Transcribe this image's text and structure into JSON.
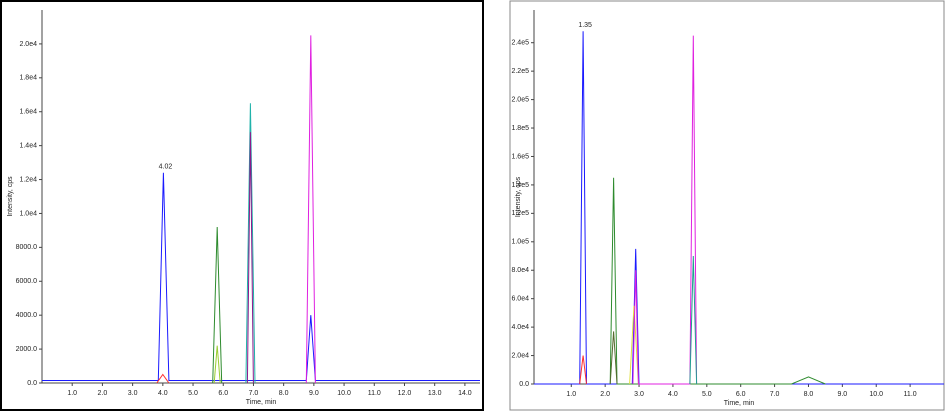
{
  "chart_data": [
    {
      "type": "line",
      "x_label": "Time, min",
      "y_label": "Intensity, cps",
      "xlim": [
        0,
        14.5
      ],
      "ylim": [
        0,
        22000
      ],
      "xticks": [
        {
          "value": 1,
          "label": "1.0"
        },
        {
          "value": 2,
          "label": "2.0"
        },
        {
          "value": 3,
          "label": "3.0"
        },
        {
          "value": 4,
          "label": "4.0"
        },
        {
          "value": 5,
          "label": "5.0"
        },
        {
          "value": 6,
          "label": "6.0"
        },
        {
          "value": 7,
          "label": "7.0"
        },
        {
          "value": 8,
          "label": "8.0"
        },
        {
          "value": 9,
          "label": "9.0"
        },
        {
          "value": 10,
          "label": "10.0"
        },
        {
          "value": 11,
          "label": "11.0"
        },
        {
          "value": 12,
          "label": "12.0"
        },
        {
          "value": 13,
          "label": "13.0"
        },
        {
          "value": 14,
          "label": "14.0"
        }
      ],
      "yticks": [
        {
          "value": 0,
          "label": "0.0"
        },
        {
          "value": 2000,
          "label": "2000.0"
        },
        {
          "value": 4000,
          "label": "4000.0"
        },
        {
          "value": 6000,
          "label": "6000.0"
        },
        {
          "value": 8000,
          "label": "8000.0"
        },
        {
          "value": 10000,
          "label": "1.0e4"
        },
        {
          "value": 12000,
          "label": "1.2e4"
        },
        {
          "value": 14000,
          "label": "1.4e4"
        },
        {
          "value": 16000,
          "label": "1.6e4"
        },
        {
          "value": 18000,
          "label": "1.8e4"
        },
        {
          "value": 20000,
          "label": "2.0e4"
        }
      ],
      "annotations": [
        {
          "text": "4.02",
          "x": 4.02,
          "y": 12400
        }
      ],
      "series": [
        {
          "color": "#1a1aff",
          "x": [
            0,
            3.85,
            4.02,
            4.2,
            8.75,
            8.9,
            9.05,
            14.5
          ],
          "values": [
            150,
            150,
            12400,
            150,
            150,
            4000,
            150,
            150
          ]
        },
        {
          "color": "#ff3030",
          "x": [
            3.8,
            4.0,
            4.2
          ],
          "values": [
            0,
            500,
            0
          ]
        },
        {
          "color": "#2e8b2e",
          "x": [
            5.65,
            5.8,
            5.95
          ],
          "values": [
            0,
            9200,
            0
          ]
        },
        {
          "color": "#9acd32",
          "x": [
            5.7,
            5.8,
            5.9
          ],
          "values": [
            0,
            2200,
            0
          ]
        },
        {
          "color": "#20b2aa",
          "x": [
            6.75,
            6.9,
            7.05
          ],
          "values": [
            0,
            16500,
            0
          ]
        },
        {
          "color": "#8b1a8b",
          "x": [
            6.8,
            6.9,
            7.0
          ],
          "values": [
            0,
            14800,
            0
          ]
        },
        {
          "color": "#e020e0",
          "x": [
            8.75,
            8.9,
            9.05
          ],
          "values": [
            0,
            20500,
            0
          ]
        }
      ]
    },
    {
      "type": "line",
      "x_label": "Time, min",
      "y_label": "Intensity, cps",
      "xlim": [
        -0.1,
        12
      ],
      "ylim": [
        0,
        263000
      ],
      "xticks": [
        {
          "value": 1,
          "label": "1.0"
        },
        {
          "value": 2,
          "label": "2.0"
        },
        {
          "value": 3,
          "label": "3.0"
        },
        {
          "value": 4,
          "label": "4.0"
        },
        {
          "value": 5,
          "label": "5.0"
        },
        {
          "value": 6,
          "label": "6.0"
        },
        {
          "value": 7,
          "label": "7.0"
        },
        {
          "value": 8,
          "label": "8.0"
        },
        {
          "value": 9,
          "label": "9.0"
        },
        {
          "value": 10,
          "label": "10.0"
        },
        {
          "value": 11,
          "label": "11.0"
        }
      ],
      "yticks": [
        {
          "value": 0,
          "label": "0.0"
        },
        {
          "value": 20000,
          "label": "2.0e4"
        },
        {
          "value": 40000,
          "label": "4.0e4"
        },
        {
          "value": 60000,
          "label": "6.0e4"
        },
        {
          "value": 80000,
          "label": "8.0e4"
        },
        {
          "value": 100000,
          "label": "1.0e5"
        },
        {
          "value": 120000,
          "label": "1.2e5"
        },
        {
          "value": 140000,
          "label": "1.4e5"
        },
        {
          "value": 160000,
          "label": "1.6e5"
        },
        {
          "value": 180000,
          "label": "1.8e5"
        },
        {
          "value": 200000,
          "label": "2.0e5"
        },
        {
          "value": 220000,
          "label": "2.2e5"
        },
        {
          "value": 240000,
          "label": "2.4e5"
        }
      ],
      "annotations": [
        {
          "text": "1.35",
          "x": 1.35,
          "y": 248000
        }
      ],
      "series": [
        {
          "color": "#1a1aff",
          "x": [
            -0.1,
            1.25,
            1.35,
            1.45,
            2.8,
            2.9,
            3.0,
            12
          ],
          "values": [
            0,
            0,
            248000,
            0,
            0,
            95000,
            0,
            0
          ]
        },
        {
          "color": "#ff3030",
          "x": [
            1.25,
            1.35,
            1.45
          ],
          "values": [
            0,
            20000,
            0
          ]
        },
        {
          "color": "#2e8b2e",
          "x": [
            2.15,
            2.25,
            2.35,
            7.5,
            8.0,
            8.5
          ],
          "values": [
            0,
            145000,
            0,
            0,
            5000,
            0
          ]
        },
        {
          "color": "#556b2f",
          "x": [
            2.15,
            2.25,
            2.35
          ],
          "values": [
            0,
            37000,
            0
          ]
        },
        {
          "color": "#e0e040",
          "x": [
            2.72,
            2.85,
            2.98
          ],
          "values": [
            0,
            55000,
            0
          ]
        },
        {
          "color": "#e020e0",
          "x": [
            2.82,
            2.9,
            2.98,
            4.5,
            4.6,
            4.7
          ],
          "values": [
            0,
            80000,
            0,
            0,
            245000,
            0
          ]
        },
        {
          "color": "#20a090",
          "x": [
            4.5,
            4.6,
            4.7
          ],
          "values": [
            0,
            90000,
            0
          ]
        }
      ]
    }
  ]
}
